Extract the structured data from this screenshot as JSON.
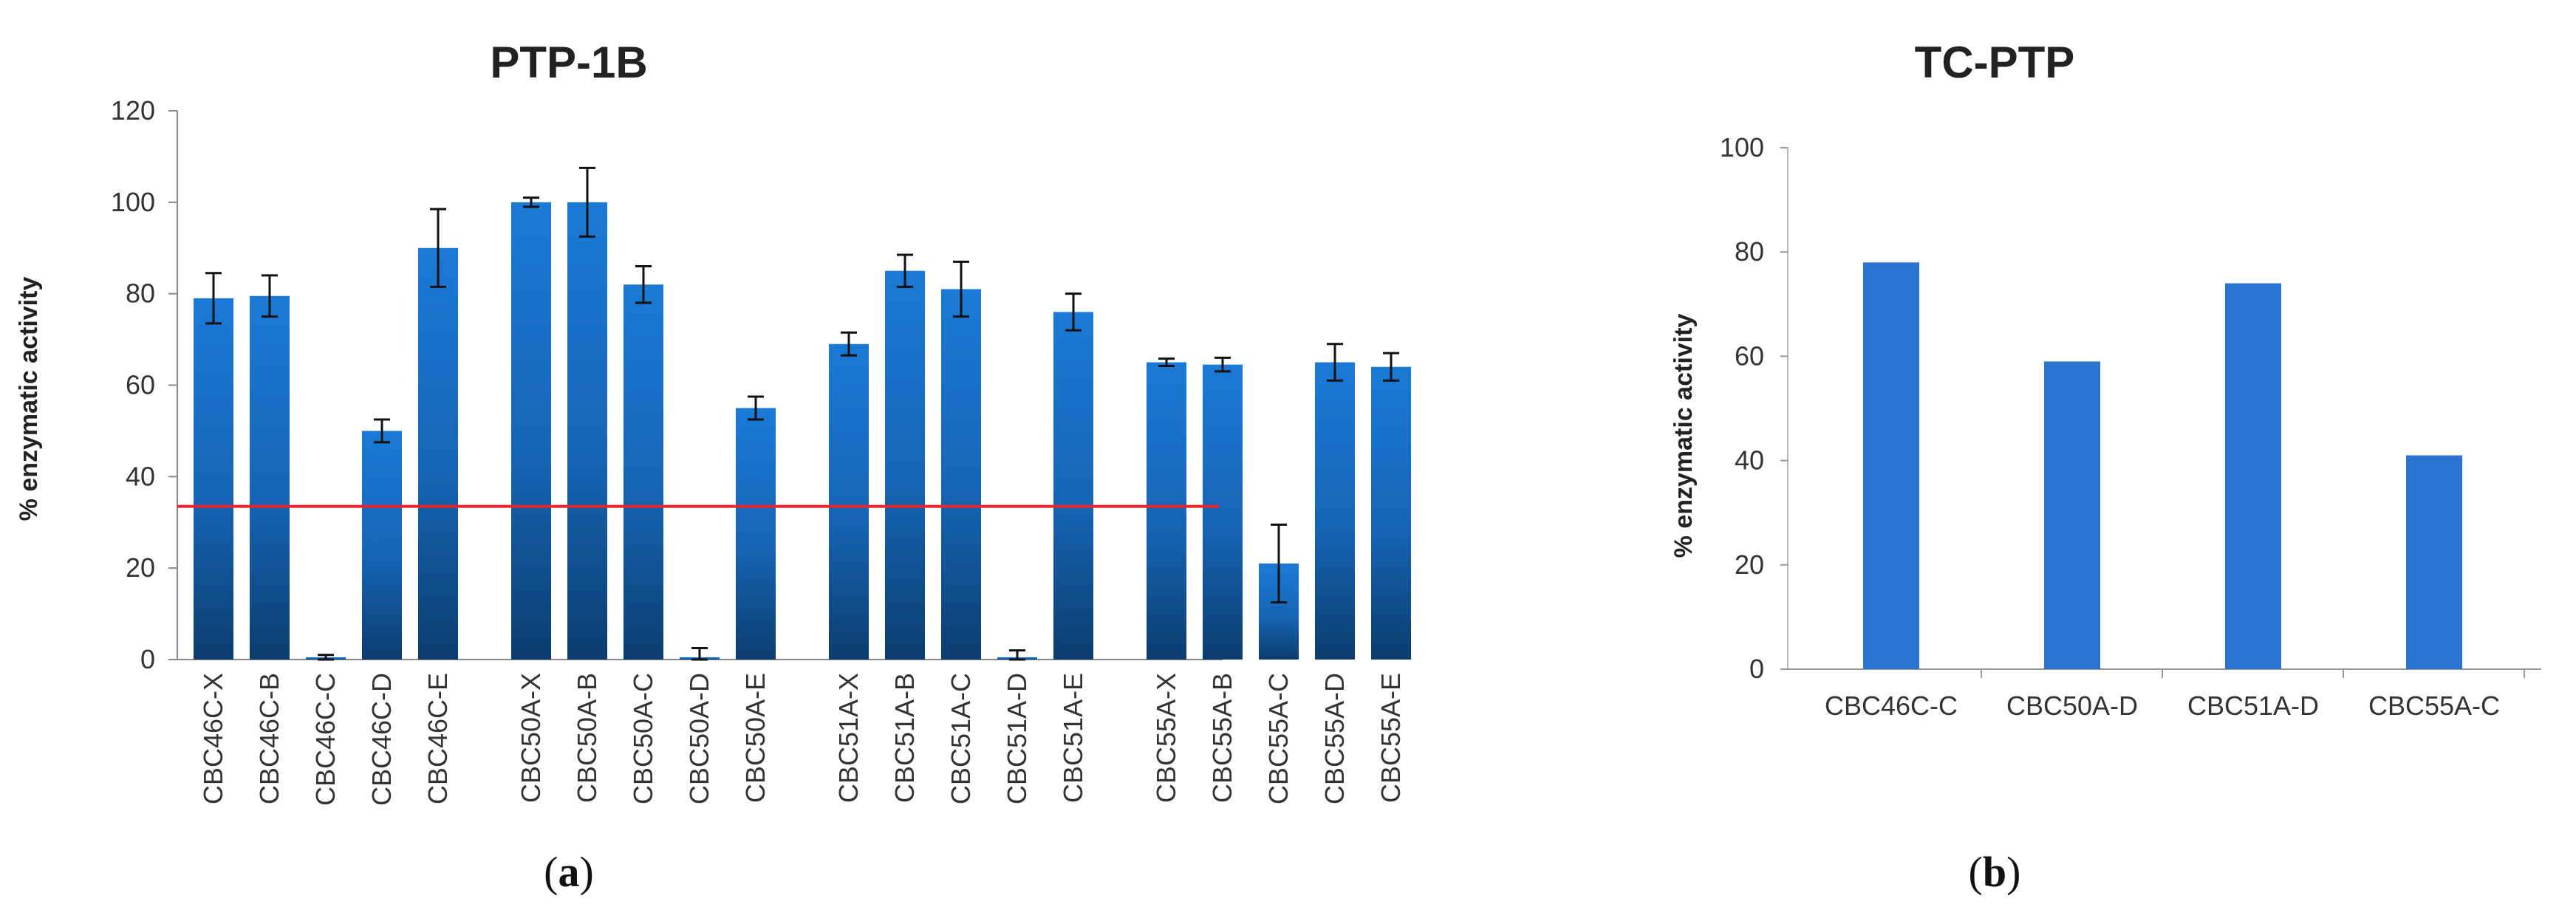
{
  "chart_data": [
    {
      "type": "bar",
      "title": "PTP-1B",
      "panel_label": "a",
      "ylabel": "% enzymatic activity",
      "ylim": [
        0,
        120
      ],
      "yticks": [
        0,
        20,
        40,
        60,
        80,
        100,
        120
      ],
      "categories": [
        "CBC46C-X",
        "CBC46C-B",
        "CBC46C-C",
        "CBC46C-D",
        "CBC46C-E",
        "CBC50A-X",
        "CBC50A-B",
        "CBC50A-C",
        "CBC50A-D",
        "CBC50A-E",
        "CBC51A-X",
        "CBC51A-B",
        "CBC51A-C",
        "CBC51A-D",
        "CBC51A-E",
        "CBC55A-X",
        "CBC55A-B",
        "CBC55A-C",
        "CBC55A-D",
        "CBC55A-E"
      ],
      "groups": [
        5,
        5,
        5,
        5
      ],
      "values": [
        79,
        79.5,
        0.5,
        50,
        90,
        100,
        100,
        82,
        0.5,
        55,
        69,
        85,
        81,
        0.5,
        76,
        65,
        64.5,
        21,
        65,
        64
      ],
      "errors": [
        5.5,
        4.5,
        0.5,
        2.5,
        8.5,
        1,
        7.5,
        4,
        2,
        2.5,
        2.5,
        3.5,
        6,
        1.5,
        4,
        0.8,
        1.5,
        8.5,
        4,
        3
      ],
      "reference_line": 33.5,
      "grid": false,
      "colors": {
        "bar": "#1b6fc1",
        "bar_dark": "#0b3d6e",
        "reference_line": "#e8262a"
      }
    },
    {
      "type": "bar",
      "title": "TC-PTP",
      "panel_label": "b",
      "ylabel": "% enzymatic activity",
      "ylim": [
        0,
        100
      ],
      "yticks": [
        0,
        20,
        40,
        60,
        80,
        100
      ],
      "categories": [
        "CBC46C-C",
        "CBC50A-D",
        "CBC51A-D",
        "CBC55A-C"
      ],
      "values": [
        78,
        59,
        74,
        41
      ],
      "grid": false,
      "colors": {
        "bar": "#2a73cf"
      }
    }
  ]
}
